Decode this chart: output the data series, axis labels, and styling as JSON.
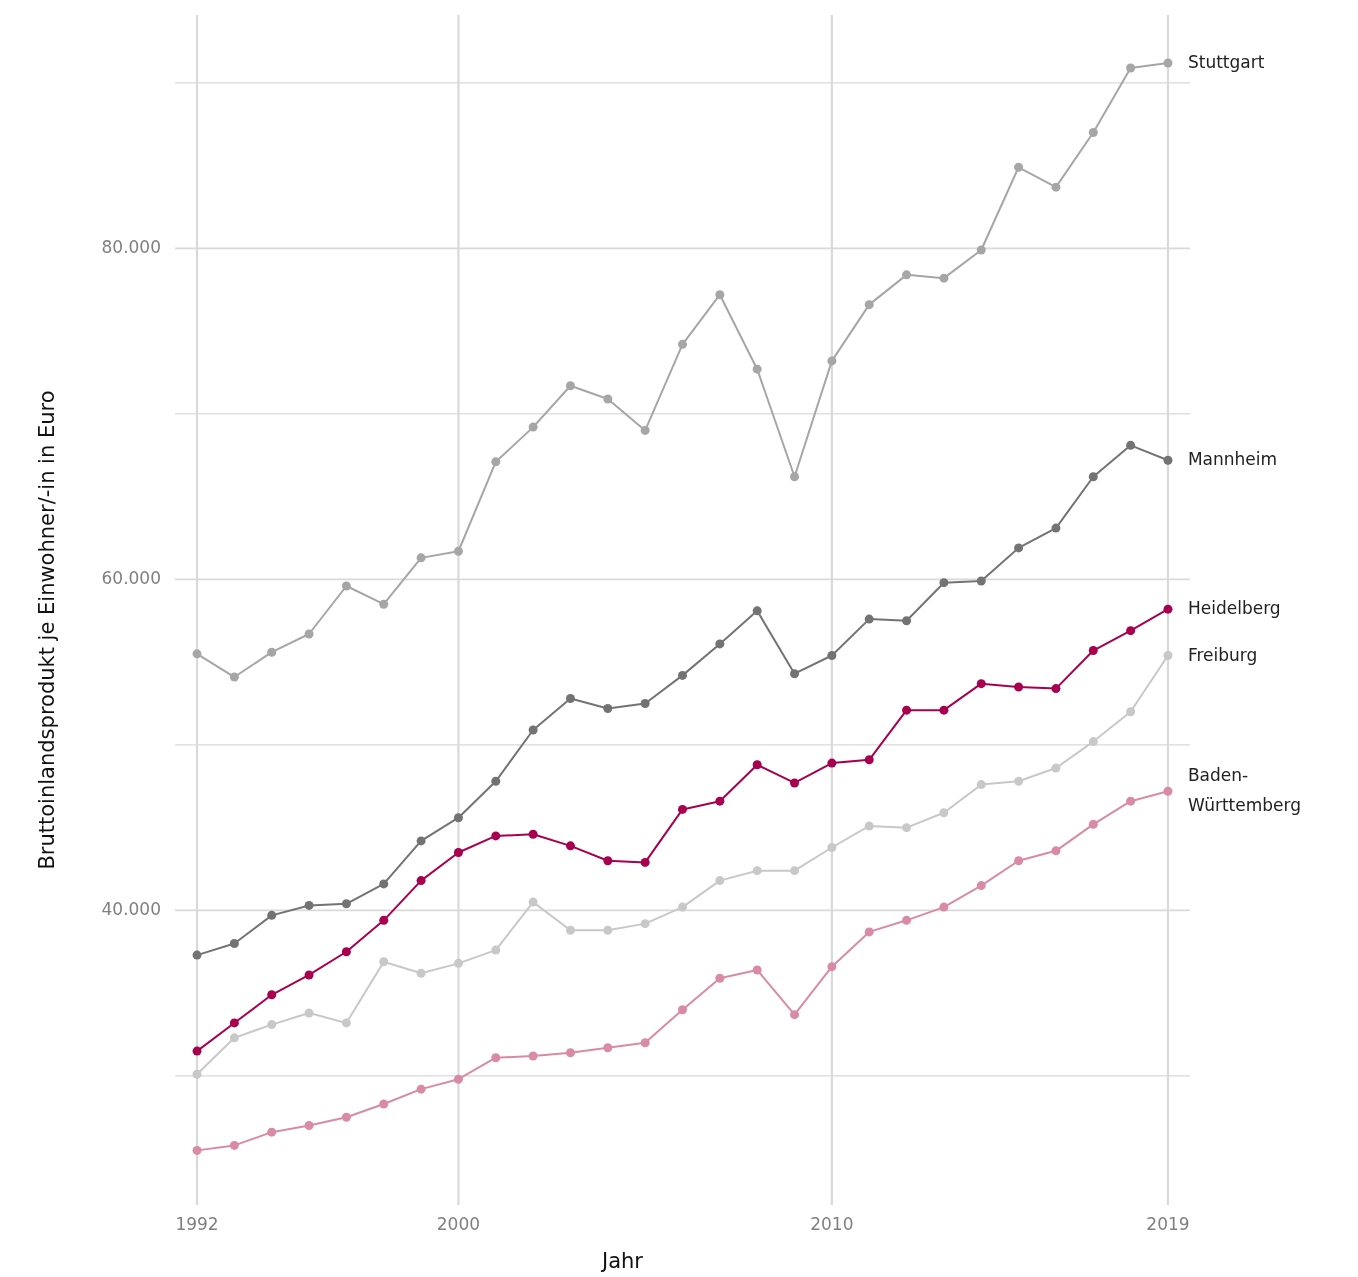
{
  "chart_data": {
    "type": "line",
    "xlabel": "Jahr",
    "ylabel": "Bruttoinlandsprodukt je Einwohner/-in in Euro",
    "categories": [
      "1992",
      null,
      null,
      null,
      null,
      null,
      null,
      "2000",
      null,
      null,
      null,
      null,
      null,
      null,
      null,
      null,
      null,
      "2010",
      null,
      null,
      null,
      null,
      null,
      null,
      null,
      null,
      "2019"
    ],
    "ylim": [
      22200,
      94100
    ],
    "yticks": [
      {
        "value": 30000,
        "label": null
      },
      {
        "value": 40000,
        "label": "40.000"
      },
      {
        "value": 50000,
        "label": null
      },
      {
        "value": 60000,
        "label": "60.000"
      },
      {
        "value": 70000,
        "label": null
      },
      {
        "value": 80000,
        "label": "80.000"
      },
      {
        "value": 90000,
        "label": null
      }
    ],
    "grid": true,
    "legend": false,
    "marker": "circle",
    "line_style": "solid",
    "series": [
      {
        "name": "Stuttgart",
        "color": "#a6a6a6",
        "values": [
          55500,
          54100,
          55600,
          56700,
          59600,
          58500,
          61300,
          61700,
          67100,
          69200,
          71700,
          70900,
          69000,
          74200,
          77200,
          72700,
          66200,
          73200,
          76600,
          78400,
          78200,
          79900,
          84900,
          83700,
          87000,
          90900,
          91200
        ]
      },
      {
        "name": "Mannheim",
        "color": "#737373",
        "values": [
          37300,
          38000,
          39700,
          40300,
          40400,
          41600,
          44200,
          45600,
          47800,
          50900,
          52800,
          52200,
          52500,
          54200,
          56100,
          58100,
          54300,
          55400,
          57600,
          57500,
          59800,
          59900,
          61900,
          63100,
          66200,
          68100,
          67200
        ]
      },
      {
        "name": "Heidelberg",
        "color": "#a8004f",
        "values": [
          31500,
          33200,
          34900,
          36100,
          37500,
          39400,
          41800,
          43500,
          44500,
          44600,
          43900,
          43000,
          42900,
          46100,
          46600,
          48800,
          47700,
          48900,
          49100,
          52100,
          52100,
          53700,
          53500,
          53400,
          55700,
          56900,
          58200
        ]
      },
      {
        "name": "Freiburg",
        "color": "#c8c8c8",
        "values": [
          30100,
          32300,
          33100,
          33800,
          33200,
          36900,
          36200,
          36800,
          37600,
          40500,
          38800,
          38800,
          39200,
          40200,
          41800,
          42400,
          42400,
          43800,
          45100,
          45000,
          45900,
          47600,
          47800,
          48600,
          50200,
          52000,
          55400
        ]
      },
      {
        "name": "Baden-Württemberg",
        "color": "#d98aa6",
        "values": [
          25500,
          25800,
          26600,
          27000,
          27500,
          28300,
          29200,
          29800,
          31100,
          31200,
          31400,
          31700,
          32000,
          34000,
          35900,
          36400,
          33700,
          36600,
          38700,
          39400,
          40200,
          41500,
          43000,
          43600,
          45200,
          46600,
          47200
        ]
      }
    ]
  }
}
